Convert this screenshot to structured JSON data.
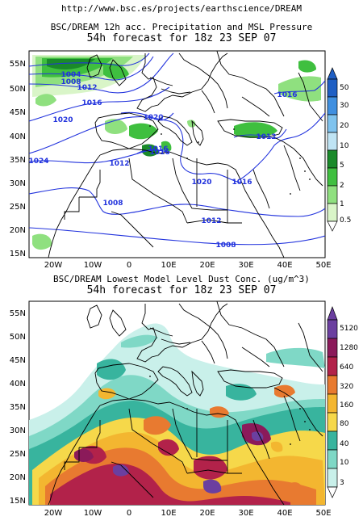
{
  "header": {
    "url": "http://www.bsc.es/projects/earthscience/DREAM"
  },
  "maps": [
    {
      "title_line1": "BSC/DREAM 12h acc. Precipitation and MSL Pressure",
      "title_line2": "54h forecast for 18z 23 SEP 07",
      "lat_labels": [
        "55N",
        "50N",
        "45N",
        "40N",
        "35N",
        "30N",
        "25N",
        "20N",
        "15N"
      ],
      "lon_labels": [
        "20W",
        "10W",
        "0",
        "10E",
        "20E",
        "30E",
        "40E",
        "50E"
      ],
      "isobar_labels": [
        "1004",
        "1008",
        "1012",
        "1016",
        "1020",
        "1020",
        "1024",
        "1012",
        "1016",
        "1016",
        "1012",
        "1016",
        "1008",
        "1020",
        "1016",
        "1012",
        "1008"
      ],
      "colorbar_labels": [
        "50",
        "30",
        "20",
        "10",
        "5",
        "2",
        "1",
        "0.5"
      ],
      "colorbar_colors": [
        "#1f5fc4",
        "#3f8fe0",
        "#7fc3ee",
        "#bfe4f4",
        "#1a8a2a",
        "#3fbf3f",
        "#8fe07f",
        "#d9f5c8"
      ]
    },
    {
      "title_line1": "BSC/DREAM Lowest Model Level Dust Conc. (ug/m^3)",
      "title_line2": "54h forecast for 18z 23 SEP 07",
      "lat_labels": [
        "55N",
        "50N",
        "45N",
        "40N",
        "35N",
        "30N",
        "25N",
        "20N",
        "15N"
      ],
      "lon_labels": [
        "20W",
        "10W",
        "0",
        "10E",
        "20E",
        "30E",
        "40E",
        "50E"
      ],
      "colorbar_labels": [
        "5120",
        "1280",
        "640",
        "320",
        "160",
        "80",
        "40",
        "10",
        "3"
      ],
      "colorbar_colors": [
        "#6b3fa0",
        "#8b1a5a",
        "#b2224a",
        "#e87a30",
        "#f3b630",
        "#f6d84a",
        "#38b49e",
        "#7fd8c6",
        "#c9f0ea"
      ]
    }
  ]
}
